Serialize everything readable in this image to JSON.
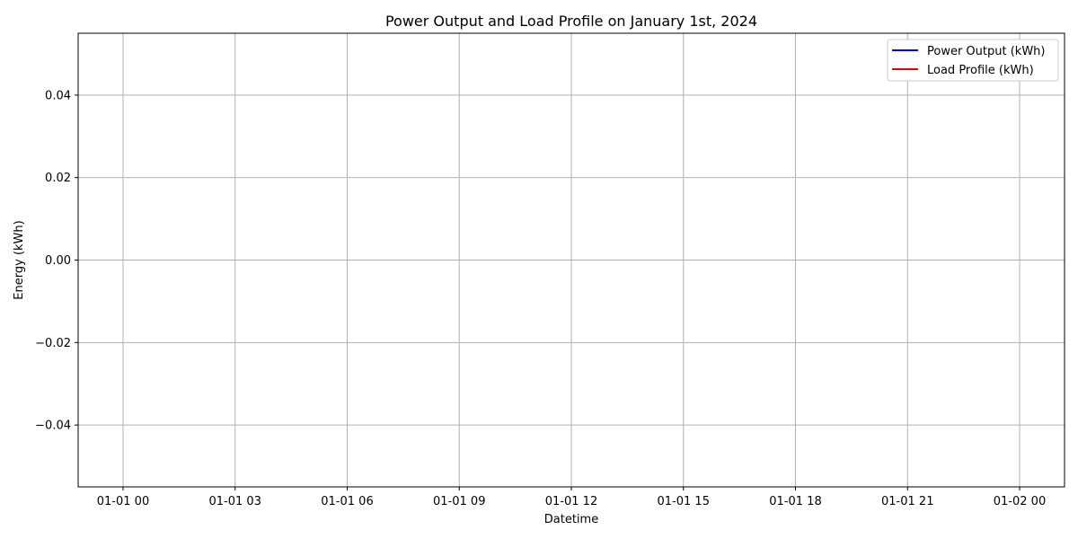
{
  "chart_data": {
    "type": "line",
    "title": "Power Output and Load Profile on January 1st, 2024",
    "xlabel": "Datetime",
    "ylabel": "Energy (kWh)",
    "x_ticks": [
      "01-01 00",
      "01-01 03",
      "01-01 06",
      "01-01 09",
      "01-01 12",
      "01-01 15",
      "01-01 18",
      "01-01 21",
      "01-02 00"
    ],
    "y_ticks": [
      {
        "value": 0.04,
        "label": "0.04"
      },
      {
        "value": 0.02,
        "label": "0.02"
      },
      {
        "value": 0.0,
        "label": "0.00"
      },
      {
        "value": -0.02,
        "label": "−0.02"
      },
      {
        "value": -0.04,
        "label": "−0.04"
      }
    ],
    "ylim": [
      -0.055,
      0.055
    ],
    "grid": true,
    "legend_position": "top-right",
    "series": [
      {
        "name": "Power Output (kWh)",
        "color": "#0000cc",
        "values": []
      },
      {
        "name": "Load Profile (kWh)",
        "color": "#e60000",
        "values": []
      }
    ]
  }
}
